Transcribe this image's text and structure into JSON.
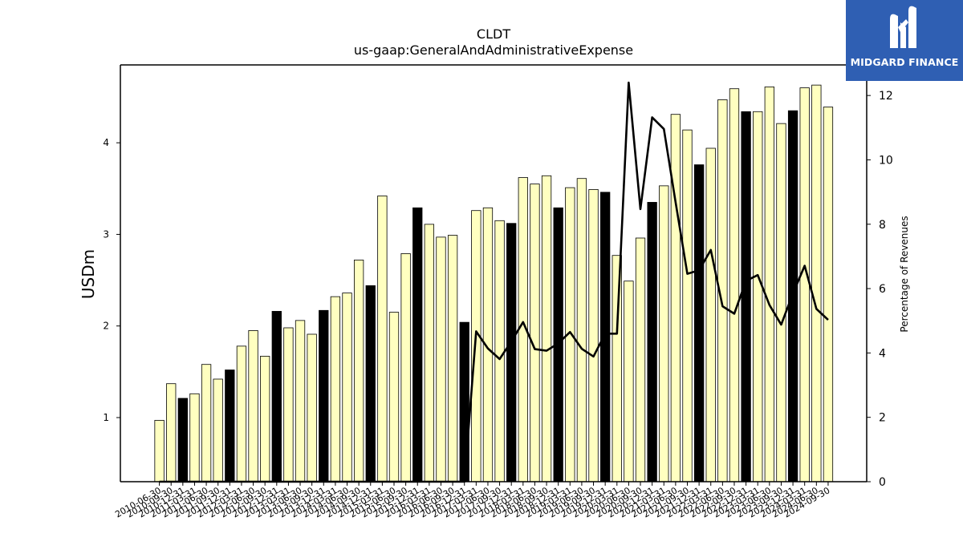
{
  "chart_data": {
    "type": "bar",
    "title": "CLDT",
    "subtitle": "us-gaap:GeneralAndAdministrativeExpense",
    "ylabel": "USDm",
    "ylabel_right": "Percentage of Revenues",
    "ylim": [
      0.3,
      4.85
    ],
    "ylim_right": [
      0,
      12.95
    ],
    "yticks": [
      1,
      2,
      3,
      4
    ],
    "yticks_right": [
      0,
      2,
      4,
      6,
      8,
      10,
      12
    ],
    "grid": false,
    "colors": {
      "bar": "#ffffc0",
      "bar_annual": "#000000",
      "line": "#000000",
      "edge": "#000000"
    },
    "categories": [
      "2010-06-30",
      "2010-09-30",
      "2010-12-31",
      "2011-03-31",
      "2011-06-30",
      "2011-09-30",
      "2011-12-31",
      "2012-03-31",
      "2012-06-30",
      "2012-09-30",
      "2012-12-31",
      "2013-03-31",
      "2013-06-30",
      "2013-09-30",
      "2013-12-31",
      "2014-03-31",
      "2014-06-30",
      "2014-09-30",
      "2014-12-31",
      "2015-03-31",
      "2015-06-30",
      "2015-09-30",
      "2015-12-31",
      "2016-03-31",
      "2016-06-30",
      "2016-09-30",
      "2016-12-31",
      "2017-03-31",
      "2017-06-30",
      "2017-09-30",
      "2017-12-31",
      "2018-03-31",
      "2018-06-30",
      "2018-09-30",
      "2018-12-31",
      "2019-03-31",
      "2019-06-30",
      "2019-09-30",
      "2019-12-31",
      "2020-03-31",
      "2020-06-30",
      "2020-09-30",
      "2020-12-31",
      "2021-03-31",
      "2021-06-30",
      "2021-09-30",
      "2021-12-31",
      "2022-03-31",
      "2022-06-30",
      "2022-09-30",
      "2022-12-31",
      "2023-03-31",
      "2023-06-30",
      "2023-09-30",
      "2023-12-31",
      "2024-03-31",
      "2024-06-30",
      "2024-09-30"
    ],
    "values": [
      0.97,
      1.37,
      1.21,
      1.26,
      1.58,
      1.42,
      1.52,
      1.78,
      1.95,
      1.67,
      2.16,
      1.98,
      2.06,
      1.91,
      2.17,
      2.32,
      2.36,
      2.72,
      2.44,
      3.42,
      2.15,
      2.79,
      3.29,
      3.11,
      2.97,
      2.99,
      2.04,
      3.26,
      3.29,
      3.15,
      3.12,
      3.62,
      3.55,
      3.64,
      3.29,
      3.51,
      3.61,
      3.49,
      3.46,
      2.77,
      2.49,
      2.96,
      3.35,
      3.53,
      4.31,
      4.14,
      3.76,
      3.94,
      4.47,
      4.59,
      4.34,
      4.34,
      4.61,
      4.21,
      4.35,
      4.6,
      4.63,
      4.39
    ],
    "annual_flags": [
      0,
      0,
      1,
      0,
      0,
      0,
      1,
      0,
      0,
      0,
      1,
      0,
      0,
      0,
      1,
      0,
      0,
      0,
      1,
      0,
      0,
      0,
      1,
      0,
      0,
      0,
      1,
      0,
      0,
      0,
      1,
      0,
      0,
      0,
      1,
      0,
      0,
      0,
      1,
      0,
      0,
      0,
      1,
      0,
      0,
      0,
      1,
      0,
      0,
      0,
      1,
      0,
      0,
      0,
      1,
      0,
      0,
      0
    ],
    "line_series": {
      "name": "Percentage of Revenues",
      "values": [
        0,
        0,
        0,
        0,
        0,
        0,
        0,
        0,
        0,
        0,
        0,
        0,
        0,
        0,
        0,
        0,
        0,
        0,
        0,
        0,
        0,
        0,
        0,
        0,
        0,
        0,
        0,
        4.67,
        4.14,
        3.81,
        4.36,
        4.96,
        4.12,
        4.07,
        4.3,
        4.65,
        4.13,
        3.89,
        4.6,
        4.6,
        12.4,
        8.47,
        11.32,
        10.96,
        8.68,
        6.46,
        6.57,
        7.2,
        5.45,
        5.22,
        6.24,
        6.42,
        5.49,
        4.88,
        5.85,
        6.71,
        5.37,
        5.03
      ]
    }
  },
  "logo": {
    "text": "MIDGARD FINANCE",
    "bg": "#2f5fb3"
  }
}
